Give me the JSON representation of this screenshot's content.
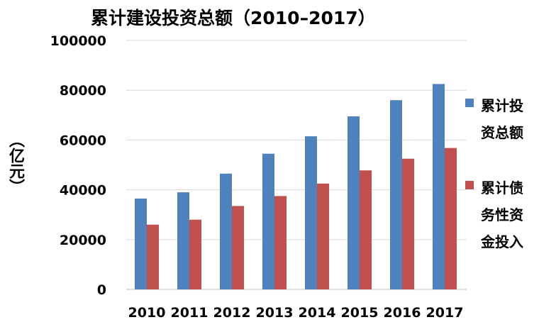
{
  "chart_data": {
    "type": "bar",
    "title": "累计建设投资总额（2010–2017）",
    "ylabel": "（亿元）",
    "xlabel": "",
    "categories": [
      "2010",
      "2011",
      "2012",
      "2013",
      "2014",
      "2015",
      "2016",
      "2017"
    ],
    "series": [
      {
        "name": "累计投资总额",
        "color": "#4f81bd",
        "values": [
          36500,
          39000,
          46500,
          54500,
          61500,
          69500,
          76000,
          82500
        ]
      },
      {
        "name": "累计债务性资金投入",
        "color": "#c0504d",
        "values": [
          26000,
          28000,
          33500,
          37500,
          42500,
          47800,
          52500,
          56800
        ]
      }
    ],
    "ylim": [
      0,
      100000
    ],
    "yticks": [
      "0",
      "20000",
      "40000",
      "60000",
      "80000",
      "100000"
    ],
    "grid": true,
    "legend_position": "right"
  }
}
